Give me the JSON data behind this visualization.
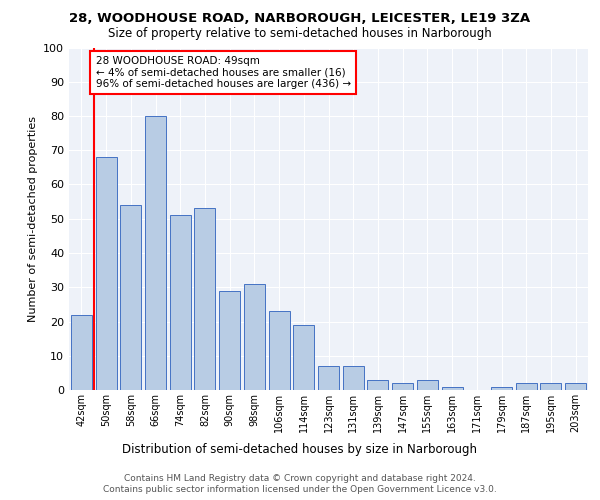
{
  "title1": "28, WOODHOUSE ROAD, NARBOROUGH, LEICESTER, LE19 3ZA",
  "title2": "Size of property relative to semi-detached houses in Narborough",
  "xlabel": "Distribution of semi-detached houses by size in Narborough",
  "ylabel": "Number of semi-detached properties",
  "categories": [
    "42sqm",
    "50sqm",
    "58sqm",
    "66sqm",
    "74sqm",
    "82sqm",
    "90sqm",
    "98sqm",
    "106sqm",
    "114sqm",
    "123sqm",
    "131sqm",
    "139sqm",
    "147sqm",
    "155sqm",
    "163sqm",
    "171sqm",
    "179sqm",
    "187sqm",
    "195sqm",
    "203sqm"
  ],
  "values": [
    22,
    68,
    54,
    80,
    51,
    53,
    29,
    31,
    23,
    19,
    7,
    7,
    3,
    2,
    3,
    1,
    0,
    1,
    2,
    2,
    2
  ],
  "bar_color": "#b8cce4",
  "bar_edge_color": "#4472c4",
  "highlight_color": "#ff0000",
  "annotation_title": "28 WOODHOUSE ROAD: 49sqm",
  "annotation_line1": "← 4% of semi-detached houses are smaller (16)",
  "annotation_line2": "96% of semi-detached houses are larger (436) →",
  "footer1": "Contains HM Land Registry data © Crown copyright and database right 2024.",
  "footer2": "Contains public sector information licensed under the Open Government Licence v3.0.",
  "ylim": [
    0,
    100
  ],
  "bg_color": "#eef2f9",
  "grid_color": "#ffffff"
}
